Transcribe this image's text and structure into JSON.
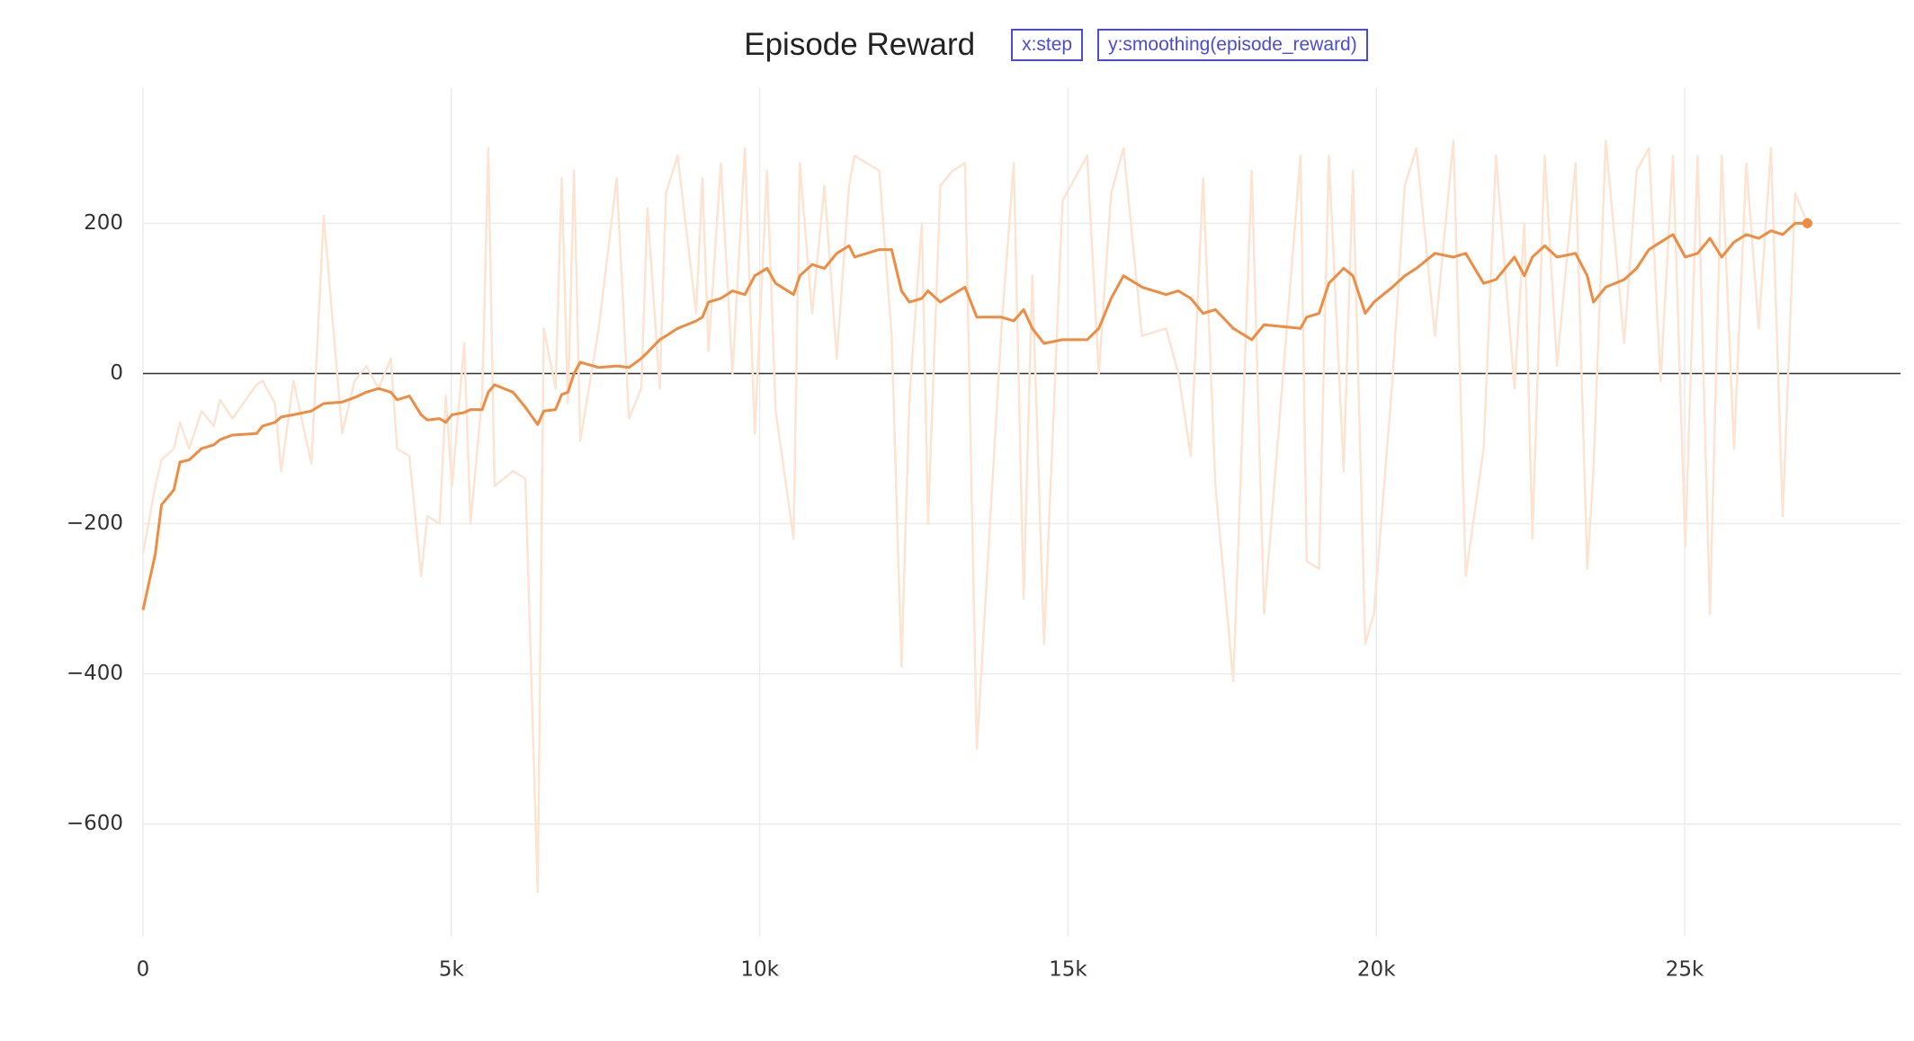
{
  "chart_data": {
    "type": "line",
    "title": "Episode Reward",
    "x_label": "x:step",
    "y_label": "y:smoothing(episode_reward)",
    "x": [
      0,
      200,
      300,
      500,
      600,
      750,
      950,
      1150,
      1250,
      1450,
      1840,
      1940,
      2140,
      2240,
      2440,
      2730,
      2930,
      3230,
      3430,
      3620,
      3820,
      4020,
      4120,
      4320,
      4510,
      4610,
      4810,
      4910,
      5010,
      5210,
      5310,
      5500,
      5600,
      5700,
      6000,
      6200,
      6400,
      6500,
      6690,
      6790,
      6890,
      6990,
      7090,
      7390,
      7680,
      7880,
      8080,
      8180,
      8380,
      8480,
      8670,
      8970,
      9070,
      9170,
      9370,
      9560,
      9760,
      9920,
      10120,
      10260,
      10550,
      10650,
      10850,
      11050,
      11250,
      11450,
      11540,
      11940,
      12140,
      12300,
      12430,
      12630,
      12730,
      12930,
      13130,
      13330,
      13520,
      13920,
      14120,
      14280,
      14420,
      14610,
      14910,
      15310,
      15500,
      15700,
      15900,
      16200,
      16590,
      16790,
      16990,
      17190,
      17390,
      17680,
      17980,
      18180,
      18770,
      18870,
      19070,
      19230,
      19470,
      19620,
      19820,
      19960,
      20260,
      20460,
      20650,
      20950,
      21250,
      21450,
      21740,
      21940,
      22240,
      22400,
      22530,
      22730,
      22930,
      23230,
      23420,
      23520,
      23720,
      24020,
      24220,
      24420,
      24610,
      24810,
      25010,
      25210,
      25410,
      25600,
      25800,
      26000,
      26200,
      26400,
      26590,
      26790,
      26990
    ],
    "series": [
      {
        "color": "#fde4d2",
        "values": [
          -240,
          -150,
          -115,
          -100,
          -65,
          -100,
          -50,
          -70,
          -35,
          -60,
          -15,
          -10,
          -40,
          -130,
          -10,
          -120,
          210,
          -80,
          -10,
          10,
          -20,
          20,
          -100,
          -110,
          -270,
          -190,
          -200,
          -30,
          -150,
          40,
          -200,
          -30,
          300,
          -150,
          -130,
          -140,
          -690,
          60,
          -20,
          260,
          -40,
          270,
          -90,
          60,
          260,
          -60,
          -20,
          220,
          -20,
          240,
          290,
          80,
          260,
          30,
          280,
          0,
          300,
          -80,
          270,
          -50,
          -220,
          280,
          80,
          250,
          20,
          250,
          290,
          270,
          50,
          -390,
          -30,
          200,
          -200,
          250,
          270,
          280,
          -500,
          60,
          280,
          -300,
          130,
          -360,
          230,
          290,
          0,
          240,
          300,
          50,
          60,
          0,
          -110,
          260,
          -150,
          -410,
          270,
          -320,
          290,
          -250,
          -260,
          290,
          -130,
          270,
          -360,
          -320,
          -10,
          250,
          300,
          50,
          310,
          -270,
          -100,
          290,
          -20,
          200,
          -220,
          290,
          10,
          280,
          -260,
          -130,
          310,
          40,
          270,
          300,
          -10,
          290,
          -230,
          290,
          -320,
          290,
          -100,
          280,
          60,
          300,
          -190,
          240,
          200
        ]
      },
      {
        "color": "#f08c41",
        "end_marker": true,
        "values": [
          -315,
          -240,
          -175,
          -155,
          -118,
          -115,
          -100,
          -95,
          -88,
          -82,
          -80,
          -70,
          -65,
          -58,
          -55,
          -50,
          -40,
          -38,
          -32,
          -25,
          -20,
          -25,
          -35,
          -30,
          -55,
          -62,
          -60,
          -65,
          -55,
          -52,
          -48,
          -48,
          -25,
          -15,
          -25,
          -45,
          -68,
          -50,
          -48,
          -28,
          -25,
          0,
          15,
          8,
          10,
          8,
          20,
          28,
          45,
          50,
          60,
          70,
          75,
          95,
          100,
          110,
          105,
          130,
          140,
          120,
          105,
          130,
          145,
          140,
          160,
          170,
          155,
          165,
          165,
          110,
          95,
          100,
          110,
          95,
          105,
          115,
          75,
          75,
          70,
          85,
          60,
          40,
          45,
          45,
          60,
          100,
          130,
          115,
          105,
          110,
          100,
          80,
          85,
          60,
          45,
          65,
          60,
          75,
          80,
          120,
          140,
          130,
          80,
          95,
          115,
          130,
          140,
          160,
          155,
          160,
          120,
          125,
          155,
          130,
          155,
          170,
          155,
          160,
          130,
          95,
          115,
          125,
          140,
          165,
          175,
          185,
          155,
          160,
          180,
          155,
          175,
          185,
          180,
          190,
          185,
          200,
          200
        ]
      }
    ],
    "xlim": [
      0,
      28500
    ],
    "ylim": [
      -750,
      380
    ],
    "xticks": [
      0,
      {
        "value": 5000,
        "label": "5k"
      },
      {
        "value": 10000,
        "label": "10k"
      },
      {
        "value": 15000,
        "label": "15k"
      },
      {
        "value": 20000,
        "label": "20k"
      },
      {
        "value": 25000,
        "label": "25k"
      }
    ],
    "yticks": [
      {
        "value": -600,
        "label": "−600"
      },
      {
        "value": -400,
        "label": "−400"
      },
      {
        "value": -200,
        "label": "−200"
      },
      0,
      200
    ],
    "grid": true,
    "zero_line": true
  }
}
